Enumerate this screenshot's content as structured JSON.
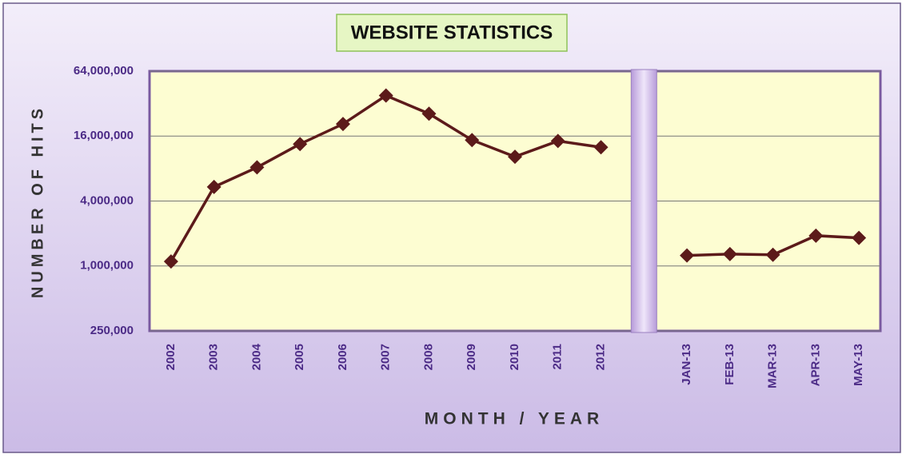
{
  "chart_data": {
    "type": "line",
    "title": "WEBSITE STATISTICS",
    "x_label": "MONTH / YEAR",
    "y_label": "NUMBER OF HITS",
    "categories": [
      "2002",
      "2003",
      "2004",
      "2005",
      "2006",
      "2007",
      "2008",
      "2009",
      "2010",
      "2011",
      "2012",
      null,
      "JAN-13",
      "FEB-13",
      "MAR-13",
      "APR-13",
      "MAY-13"
    ],
    "series": [
      {
        "name": "Hits",
        "color": "#5c1a1a",
        "values": [
          1100000,
          5400000,
          8200000,
          13500000,
          20700000,
          38000000,
          25800000,
          14700000,
          10300000,
          14400000,
          12600000,
          null,
          1250000,
          1290000,
          1270000,
          1910000,
          1820000
        ]
      }
    ],
    "log_scale": true,
    "ylim": [
      250000,
      64000000
    ],
    "yticks": [
      {
        "value": 250000,
        "label": "250,000"
      },
      {
        "value": 1000000,
        "label": "1,000,000"
      },
      {
        "value": 4000000,
        "label": "4,000,000"
      },
      {
        "value": 16000000,
        "label": "16,000,000"
      },
      {
        "value": 64000000,
        "label": "64,000,000"
      }
    ],
    "grid": true
  }
}
